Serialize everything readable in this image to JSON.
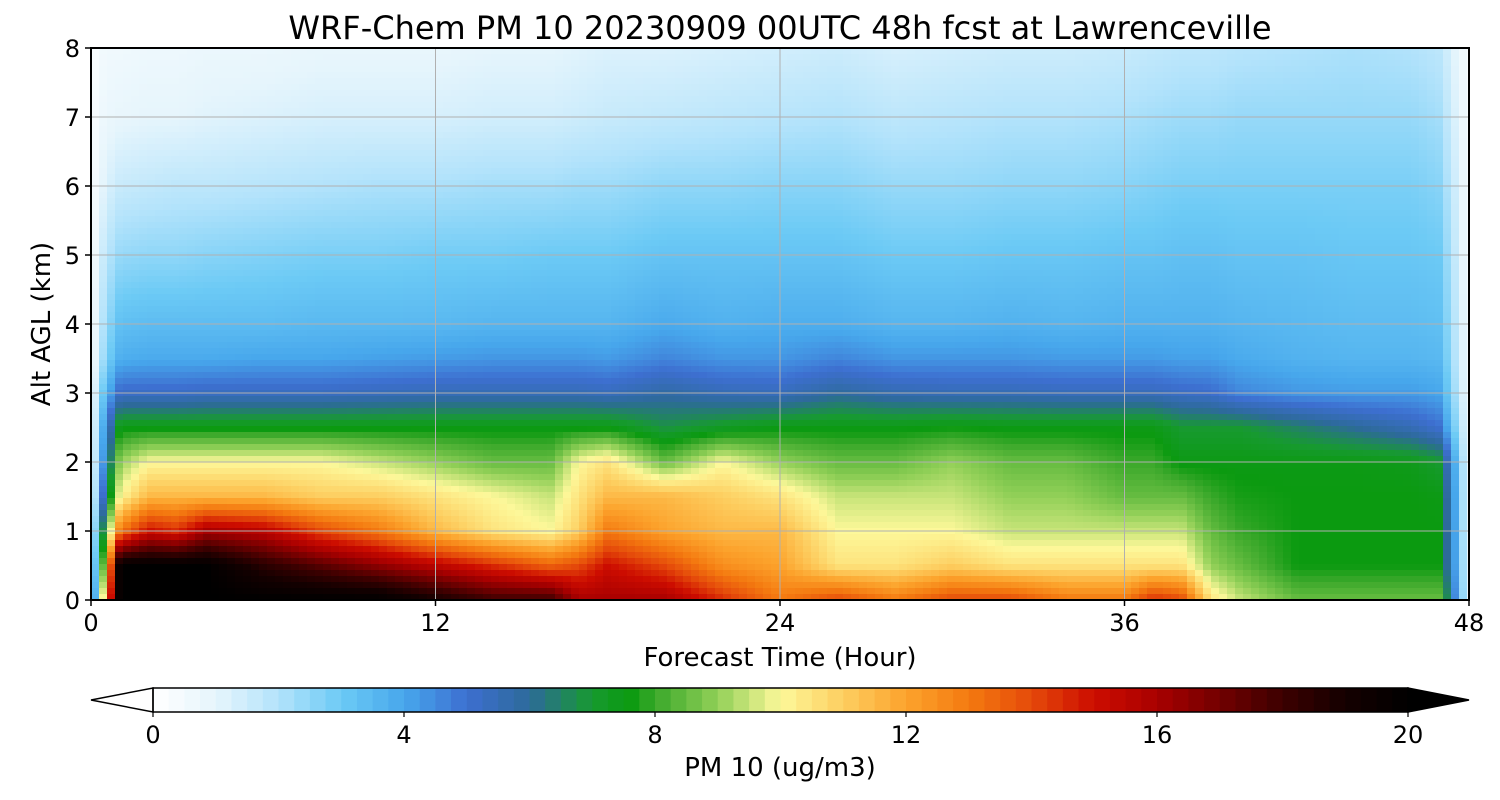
{
  "chart_data": {
    "type": "heatmap",
    "title": "WRF-Chem PM 10  20230909 00UTC 48h fcst at Lawrenceville",
    "xlabel": "Forecast Time (Hour)",
    "ylabel": "Alt AGL (km)",
    "xlim": [
      0,
      48
    ],
    "ylim": [
      0,
      8
    ],
    "x_ticks": [
      0,
      12,
      24,
      36,
      48
    ],
    "y_ticks": [
      0,
      1,
      2,
      3,
      4,
      5,
      6,
      7,
      8
    ],
    "grid": true,
    "colorbar": {
      "label": "PM 10  (ug/m3)",
      "orientation": "horizontal",
      "placement": "bottom",
      "range": [
        0,
        20
      ],
      "ticks": [
        0,
        4,
        8,
        12,
        16,
        20
      ],
      "extend": "both",
      "color_stops": [
        {
          "value": 0,
          "color": "#ffffff"
        },
        {
          "value": 1,
          "color": "#e6f5fc"
        },
        {
          "value": 2,
          "color": "#b3e3fb"
        },
        {
          "value": 3,
          "color": "#6ccaf5"
        },
        {
          "value": 4,
          "color": "#47a7ec"
        },
        {
          "value": 5,
          "color": "#3d6fd0"
        },
        {
          "value": 6,
          "color": "#2d6a9a"
        },
        {
          "value": 7,
          "color": "#179a30"
        },
        {
          "value": 7.6,
          "color": "#0b9a10"
        },
        {
          "value": 8,
          "color": "#3aa82a"
        },
        {
          "value": 9,
          "color": "#92d058"
        },
        {
          "value": 10,
          "color": "#fdf89a"
        },
        {
          "value": 11,
          "color": "#fdce60"
        },
        {
          "value": 12,
          "color": "#fca32c"
        },
        {
          "value": 13,
          "color": "#f47a10"
        },
        {
          "value": 14,
          "color": "#e54a0a"
        },
        {
          "value": 15,
          "color": "#cc0c00"
        },
        {
          "value": 16,
          "color": "#a80000"
        },
        {
          "value": 17,
          "color": "#720000"
        },
        {
          "value": 18,
          "color": "#3c0000"
        },
        {
          "value": 19,
          "color": "#140000"
        },
        {
          "value": 20,
          "color": "#000000"
        }
      ]
    },
    "grid_hours": [
      0,
      0.5,
      1,
      2,
      3,
      4,
      6,
      8,
      10,
      12,
      14,
      16,
      17,
      18,
      20,
      22,
      24,
      26,
      28,
      30,
      32,
      34,
      36,
      37,
      38,
      39,
      40,
      42,
      44,
      46,
      47,
      48
    ],
    "grid_alt_km": [
      0,
      0.5,
      1,
      1.5,
      2,
      2.5,
      3,
      3.5,
      4,
      5,
      6,
      7,
      8
    ],
    "values_by_hour": [
      [
        0.5,
        0.5,
        0.5,
        0.5,
        0.4,
        0.4,
        0.4,
        0.3,
        0.3,
        0.2,
        0.2,
        0.2,
        0.2
      ],
      [
        12,
        10,
        8,
        6,
        5,
        4.5,
        3.5,
        2.6,
        2.3,
        1.8,
        1.2,
        0.8,
        0.6
      ],
      [
        20,
        20,
        13,
        10,
        9,
        7.5,
        5.2,
        3.8,
        3.3,
        2.4,
        1.6,
        0.9,
        0.6
      ],
      [
        20,
        20,
        15,
        11.5,
        10,
        7.5,
        5.2,
        3.9,
        3.4,
        2.5,
        1.7,
        1.0,
        0.7
      ],
      [
        20,
        20,
        14.5,
        11.5,
        10,
        7.5,
        5.2,
        3.9,
        3.4,
        2.5,
        1.8,
        1.0,
        0.7
      ],
      [
        20,
        20,
        16,
        11.5,
        10,
        7.5,
        5.3,
        3.9,
        3.4,
        2.6,
        1.8,
        1.1,
        0.8
      ],
      [
        20,
        18.5,
        15.5,
        11.5,
        10,
        7.5,
        5.3,
        4.0,
        3.4,
        2.7,
        1.9,
        1.2,
        0.8
      ],
      [
        20,
        17.5,
        14,
        11,
        10,
        7.5,
        5.3,
        4.0,
        3.5,
        2.8,
        2.0,
        1.3,
        0.9
      ],
      [
        20,
        16.5,
        13,
        11,
        9.5,
        7.5,
        5.4,
        4.1,
        3.5,
        2.8,
        2.1,
        1.3,
        0.9
      ],
      [
        19,
        15.5,
        11.5,
        10.5,
        9,
        7.5,
        5.5,
        4.2,
        3.5,
        2.9,
        2.1,
        1.3,
        0.9
      ],
      [
        18,
        14.5,
        10.5,
        10,
        8.5,
        7.5,
        5.5,
        4.3,
        3.6,
        2.9,
        2.2,
        1.4,
        1.0
      ],
      [
        18,
        13.5,
        10,
        9.5,
        8.5,
        7.5,
        5.5,
        4.3,
        3.6,
        3.0,
        2.2,
        1.4,
        1.0
      ],
      [
        16,
        14,
        11,
        10.5,
        10,
        7.5,
        5.5,
        4.3,
        3.6,
        3.0,
        2.3,
        1.5,
        1.1
      ],
      [
        16,
        15,
        13,
        11.5,
        10.5,
        7.5,
        5.4,
        4.2,
        3.6,
        3.0,
        2.3,
        1.6,
        1.2
      ],
      [
        16,
        14,
        12,
        11.5,
        8.5,
        6.8,
        5.8,
        4.6,
        3.9,
        3.2,
        2.5,
        1.7,
        1.2
      ],
      [
        14.5,
        12.5,
        11.5,
        11,
        10,
        7.2,
        5.5,
        4.3,
        3.7,
        3.2,
        2.5,
        1.8,
        1.3
      ],
      [
        13,
        12,
        11.5,
        10.5,
        9,
        7.5,
        5.4,
        4.3,
        3.8,
        3.2,
        2.6,
        1.9,
        1.4
      ],
      [
        14,
        10.5,
        10,
        9.5,
        8.5,
        7.5,
        5.9,
        4.6,
        3.8,
        3.2,
        2.6,
        2.0,
        1.5
      ],
      [
        13,
        10.5,
        10,
        9.5,
        8.5,
        7.5,
        5.6,
        4.3,
        3.6,
        3.0,
        2.4,
        1.8,
        1.3
      ],
      [
        14,
        11,
        10,
        9.5,
        9,
        7.6,
        5.5,
        4.3,
        3.6,
        3.0,
        2.4,
        1.9,
        1.4
      ],
      [
        14,
        10.5,
        9.5,
        9,
        8.5,
        7.5,
        5.5,
        4.3,
        3.7,
        3.1,
        2.5,
        2.0,
        1.5
      ],
      [
        13,
        10.5,
        9.5,
        9,
        8.5,
        7.5,
        5.4,
        4.2,
        3.6,
        3.1,
        2.5,
        2.0,
        1.5
      ],
      [
        13,
        10.5,
        9.5,
        8.5,
        8,
        7.5,
        5.4,
        4.2,
        3.7,
        3.2,
        2.6,
        2.1,
        1.6
      ],
      [
        14.5,
        10.5,
        9.5,
        8.5,
        8,
        7.5,
        5.4,
        4.2,
        3.7,
        3.2,
        2.7,
        2.2,
        1.7
      ],
      [
        14,
        10.5,
        9.5,
        8.5,
        7.5,
        7,
        5.2,
        4.1,
        3.7,
        3.3,
        2.8,
        2.3,
        1.8
      ],
      [
        10.5,
        9,
        8.5,
        8,
        7.5,
        7,
        5.1,
        4.1,
        3.7,
        3.3,
        2.8,
        2.3,
        1.8
      ],
      [
        9.5,
        8.5,
        8,
        7.7,
        7.5,
        7,
        4.6,
        3.9,
        3.6,
        3.2,
        2.8,
        2.4,
        1.9
      ],
      [
        8.5,
        7.6,
        7.6,
        7.6,
        7.5,
        6.5,
        4.3,
        3.7,
        3.5,
        3.2,
        2.8,
        2.4,
        2.0
      ],
      [
        8.5,
        7.6,
        7.6,
        7.6,
        7.5,
        6.0,
        4.2,
        3.6,
        3.4,
        3.1,
        2.8,
        2.4,
        2.1
      ],
      [
        8.5,
        7.6,
        7.6,
        7.6,
        7.4,
        5.5,
        4.2,
        3.6,
        3.4,
        3.1,
        2.8,
        2.4,
        2.0
      ],
      [
        8.5,
        7.6,
        7.6,
        7.5,
        7.0,
        5.0,
        4.0,
        3.5,
        3.3,
        3.0,
        2.6,
        2.2,
        1.8
      ],
      [
        0.8,
        0.8,
        0.7,
        0.7,
        0.7,
        0.6,
        0.5,
        0.5,
        0.5,
        0.4,
        0.4,
        0.3,
        0.3
      ]
    ]
  }
}
